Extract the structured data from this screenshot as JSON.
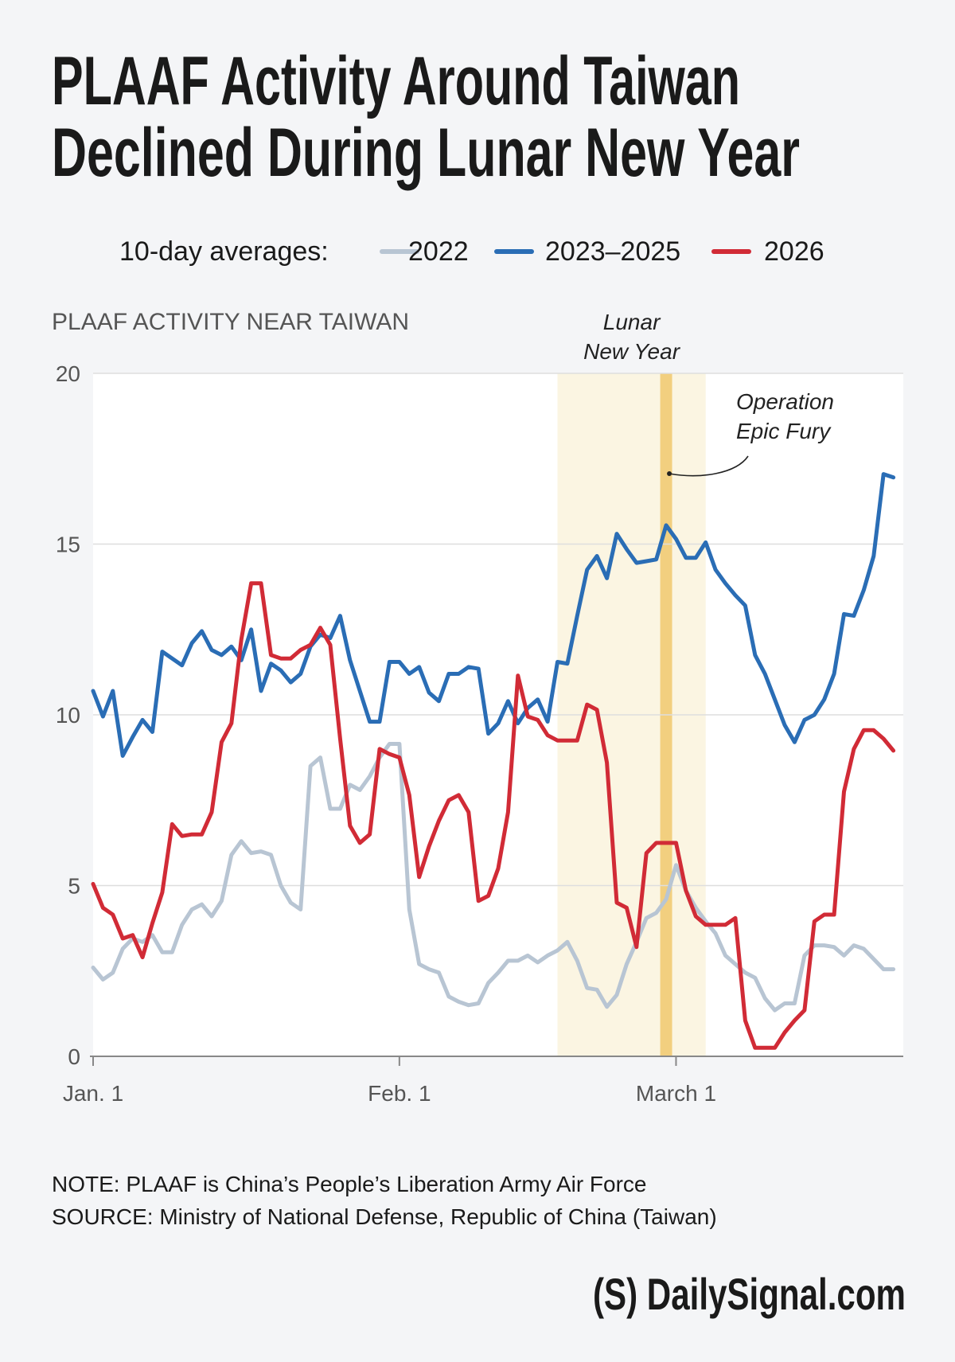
{
  "chart_data": {
    "type": "line",
    "title": [
      "PLAAF Activity Around Taiwan",
      "Declined During Lunar New Year"
    ],
    "legend_title": "10-day averages:",
    "y_axis_label": "PLAAF ACTIVITY NEAR TAIWAN",
    "x": [
      0,
      1,
      2,
      3,
      4,
      5,
      6,
      7,
      8,
      9,
      10,
      11,
      12,
      13,
      14,
      15,
      16,
      17,
      18,
      19,
      20,
      21,
      22,
      23,
      24,
      25,
      26,
      27,
      28,
      29,
      30,
      31,
      32,
      33,
      34,
      35,
      36,
      37,
      38,
      39,
      40,
      41,
      42,
      43,
      44,
      45,
      46,
      47,
      48,
      49,
      50,
      51,
      52,
      53,
      54,
      55,
      56,
      57,
      58,
      59,
      60,
      61,
      62,
      63,
      64,
      65,
      66,
      67,
      68,
      69,
      70,
      71,
      72,
      73,
      74,
      75,
      76,
      77,
      78,
      79,
      80,
      81
    ],
    "series": [
      {
        "name": "2022",
        "color": "#b8c5d3",
        "values": [
          2.6,
          2.25,
          2.45,
          3.15,
          3.45,
          3.35,
          3.55,
          3.05,
          3.05,
          3.85,
          4.3,
          4.45,
          4.1,
          4.55,
          5.9,
          6.3,
          5.95,
          6.0,
          5.9,
          5.0,
          4.5,
          4.3,
          8.5,
          8.75,
          7.25,
          7.25,
          7.95,
          7.8,
          8.2,
          8.75,
          9.15,
          9.15,
          4.3,
          2.7,
          2.55,
          2.45,
          1.75,
          1.6,
          1.5,
          1.55,
          2.15,
          2.45,
          2.8,
          2.8,
          2.95,
          2.75,
          2.95,
          3.1,
          3.35,
          2.8,
          2.0,
          1.95,
          1.45,
          1.8,
          2.7,
          3.35,
          4.05,
          4.2,
          4.6,
          5.6,
          4.85,
          4.35,
          3.95,
          3.6,
          2.95,
          2.7,
          2.45,
          2.3,
          1.7,
          1.35,
          1.55,
          1.55,
          2.95,
          3.25,
          3.25,
          3.2,
          2.95,
          3.25,
          3.15,
          2.85,
          2.55,
          2.55
        ]
      },
      {
        "name": "2023–2025",
        "color": "#2a6db5",
        "values": [
          10.7,
          9.95,
          10.7,
          8.8,
          9.35,
          9.85,
          9.5,
          11.85,
          11.65,
          11.45,
          12.1,
          12.45,
          11.9,
          11.75,
          12.0,
          11.6,
          12.5,
          10.7,
          11.5,
          11.3,
          10.95,
          11.2,
          12.0,
          12.35,
          12.25,
          12.9,
          11.6,
          10.7,
          9.8,
          9.8,
          11.55,
          11.55,
          11.2,
          11.4,
          10.65,
          10.4,
          11.2,
          11.2,
          11.4,
          11.35,
          9.45,
          9.75,
          10.4,
          9.75,
          10.2,
          10.45,
          9.8,
          11.55,
          11.5,
          12.9,
          14.25,
          14.65,
          14.0,
          15.3,
          14.85,
          14.45,
          14.5,
          14.55,
          15.55,
          15.15,
          14.6,
          14.6,
          15.05,
          14.25,
          13.85,
          13.5,
          13.2,
          11.75,
          11.2,
          10.45,
          9.7,
          9.2,
          9.85,
          10.0,
          10.45,
          11.2,
          12.95,
          12.9,
          13.65,
          14.65,
          17.05,
          16.95
        ]
      },
      {
        "name": "2026",
        "color": "#d12b36",
        "values": [
          5.05,
          4.35,
          4.15,
          3.45,
          3.55,
          2.9,
          3.9,
          4.8,
          6.8,
          6.45,
          6.5,
          6.5,
          7.15,
          9.2,
          9.75,
          12.2,
          13.85,
          13.85,
          11.75,
          11.65,
          11.65,
          11.9,
          12.05,
          12.55,
          12.05,
          9.3,
          6.75,
          6.25,
          6.5,
          9.0,
          8.85,
          8.75,
          7.65,
          5.25,
          6.15,
          6.9,
          7.5,
          7.65,
          7.15,
          4.55,
          4.7,
          5.5,
          7.15,
          11.15,
          9.95,
          9.85,
          9.4,
          9.25,
          9.25,
          9.25,
          10.3,
          10.15,
          8.6,
          4.5,
          4.35,
          3.2,
          5.95,
          6.25,
          6.25,
          6.25,
          4.85,
          4.1,
          3.85,
          3.85,
          3.85,
          4.05,
          1.05,
          0.25,
          0.25,
          0.25,
          0.7,
          1.05,
          1.35,
          3.95,
          4.15,
          4.15,
          7.75,
          9.0,
          9.55,
          9.55,
          9.3,
          8.95
        ]
      }
    ],
    "xlim": [
      0,
      82
    ],
    "xticks": [
      {
        "value": 0,
        "label": "Jan. 1"
      },
      {
        "value": 31,
        "label": "Feb. 1"
      },
      {
        "value": 59,
        "label": "March 1"
      }
    ],
    "ylim": [
      0,
      20
    ],
    "yticks": [
      0,
      5,
      10,
      15,
      20
    ],
    "grid": true,
    "shaded_band": {
      "label": [
        "Lunar",
        "New Year"
      ],
      "x": [
        47,
        62
      ],
      "color": "#fbf5e2"
    },
    "marker_line": {
      "label": [
        "Operation",
        "Epic Fury"
      ],
      "x": 58,
      "color": "#f2cf7f"
    },
    "notes": [
      "NOTE: PLAAF is China’s People’s Liberation Army Air Force",
      "SOURCE: Ministry of National Defense, Republic of China (Taiwan)"
    ],
    "brand": "(S) DailySignal.com"
  }
}
